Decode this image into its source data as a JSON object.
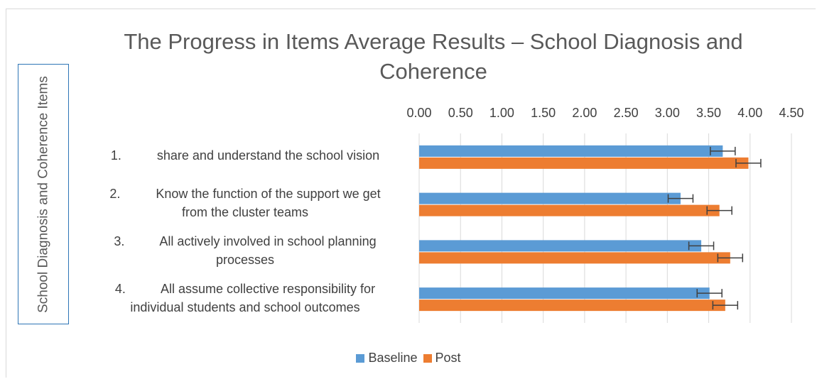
{
  "chart_data": {
    "type": "bar",
    "orientation": "horizontal",
    "title": "The Progress in Items Average Results – School Diagnosis and Coherence",
    "ylabel": "School Diagnosis and Coherence Items",
    "xlabel": "",
    "xlim": [
      0,
      4.5
    ],
    "x_ticks": [
      "0.00",
      "0.50",
      "1.00",
      "1.50",
      "2.00",
      "2.50",
      "3.00",
      "3.50",
      "4.00",
      "4.50"
    ],
    "x_axis_position": "top",
    "grid": true,
    "legend_position": "bottom",
    "categories": [
      "1.\tshare and understand the school vision",
      "2.\tKnow the function of the support we get from the cluster teams",
      "3.\tAll actively involved in school planning processes",
      "4.\tAll assume collective responsibility for individual students and school outcomes"
    ],
    "category_lines": [
      [
        "1.          share and understand the school vision"
      ],
      [
        "2.          Know the function of the support we get",
        "from the cluster teams"
      ],
      [
        "3.          All actively involved in school planning",
        "processes"
      ],
      [
        "4.          All assume collective responsibility for",
        "individual students and school outcomes"
      ]
    ],
    "series": [
      {
        "name": "Baseline",
        "color": "#5b9bd5",
        "values": [
          3.67,
          3.16,
          3.41,
          3.51
        ],
        "error": [
          0.15,
          0.15,
          0.15,
          0.15
        ]
      },
      {
        "name": "Post",
        "color": "#ed7d31",
        "values": [
          3.98,
          3.63,
          3.76,
          3.7
        ],
        "error": [
          0.15,
          0.15,
          0.15,
          0.15
        ]
      }
    ]
  }
}
